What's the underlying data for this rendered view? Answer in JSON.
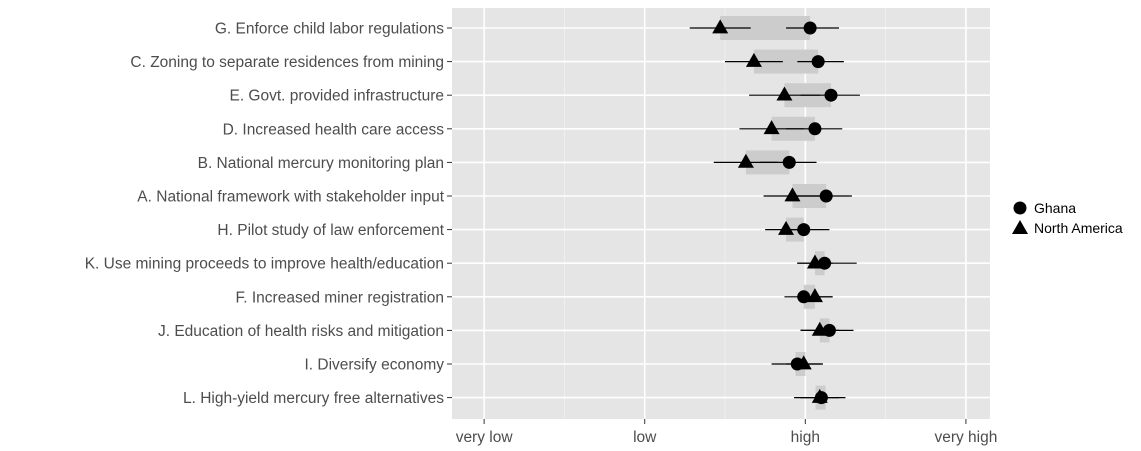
{
  "chart_data": {
    "type": "scatter",
    "orientation": "horizontal",
    "title": "",
    "xlabel": "",
    "ylabel": "",
    "x_ticks": [
      {
        "value": 1,
        "label": "very low"
      },
      {
        "value": 2,
        "label": "low"
      },
      {
        "value": 3,
        "label": "high"
      },
      {
        "value": 4,
        "label": "very high"
      }
    ],
    "xlim": [
      0.8,
      4.15
    ],
    "grid": true,
    "legend": "right",
    "categories": [
      "G. Enforce child labor regulations",
      "C. Zoning to separate residences from mining",
      "E. Govt. provided infrastructure",
      "D. Increased health care access",
      "B. National mercury monitoring plan",
      "A. National framework with stakeholder input",
      "H. Pilot study of law enforcement",
      "K. Use mining proceeds to improve health/education",
      "F. Increased miner registration",
      "J. Education of health risks and mitigation",
      "I. Diversify economy",
      "L. High-yield mercury free alternatives"
    ],
    "series": [
      {
        "name": "Ghana",
        "marker": "circle",
        "values": [
          3.03,
          3.08,
          3.16,
          3.06,
          2.9,
          3.13,
          2.99,
          3.12,
          2.99,
          3.15,
          2.95,
          3.1
        ],
        "ci_low": [
          2.88,
          2.95,
          2.97,
          2.88,
          2.72,
          2.95,
          2.86,
          2.95,
          2.87,
          2.97,
          2.79,
          2.93
        ],
        "ci_high": [
          3.21,
          3.24,
          3.34,
          3.23,
          3.07,
          3.29,
          3.15,
          3.32,
          3.17,
          3.3,
          3.11,
          3.25
        ]
      },
      {
        "name": "North America",
        "marker": "triangle",
        "values": [
          2.47,
          2.68,
          2.87,
          2.79,
          2.63,
          2.92,
          2.88,
          3.06,
          3.06,
          3.09,
          2.99,
          3.09
        ],
        "ci_low": [
          2.28,
          2.5,
          2.65,
          2.59,
          2.43,
          2.74,
          2.75,
          2.95,
          2.95,
          2.97,
          2.88,
          2.97
        ],
        "ci_high": [
          2.66,
          2.86,
          3.09,
          2.99,
          2.83,
          3.1,
          3.01,
          3.17,
          3.17,
          3.21,
          3.1,
          3.21
        ]
      }
    ],
    "background_color": "#e5e5e5",
    "grid_color": "#ffffff",
    "band_color": "#cccccc",
    "marker_color": "#000000"
  }
}
